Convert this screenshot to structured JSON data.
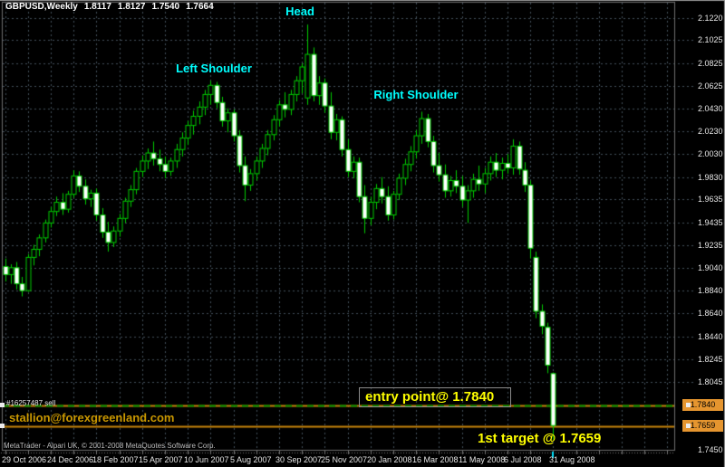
{
  "title": {
    "symbol": "GBPUSD,Weekly",
    "open": "1.8117",
    "high": "1.8127",
    "low": "1.7540",
    "close": "1.7664"
  },
  "annotations": {
    "head": "Head",
    "left_shoulder": "Left Shoulder",
    "right_shoulder": "Right Shoulder",
    "entry": "entry point@ 1.7840",
    "target": "1st target @ 1.7659"
  },
  "labels": {
    "order": "#16257487 sell",
    "email": "stallion@forexgreenland.com",
    "copyright": "MetaTrader - Alpari UK, © 2001-2008 MetaQuotes Software Corp."
  },
  "tags": {
    "entry": "1.7840",
    "target": "1.7659"
  },
  "colors": {
    "bg": "#000000",
    "frame": "#6e6e6e",
    "outer_border": "#9a9a9a",
    "grid": "#45515c",
    "candle": "#00cc00",
    "bull_fill": "#000000",
    "bear_fill": "#ffffff",
    "orange_line": "#c8860b",
    "entry_dash": "#009000",
    "tag_bg": "#e5952f",
    "tag_text": "#000000",
    "axis_text": "#e6e6e6",
    "cyan": "#00ffff",
    "yellow": "#ffff00",
    "gold": "#c99700",
    "white_text": "#ffffff",
    "watermark": "#bdbdbd",
    "tick": "#777777",
    "handle": "#ececec",
    "current_bar_tick": "#00e5ff"
  },
  "chart_data": {
    "type": "candlestick",
    "symbol": "GBPUSD",
    "timeframe": "Weekly",
    "pattern": "head and shoulders",
    "entry_price": 1.784,
    "target_price": 1.7659,
    "ylim": [
      1.745,
      2.136
    ],
    "grid": true,
    "x_ticks": [
      "29 Oct 2006",
      "24 Dec 2006",
      "18 Feb 2007",
      "15 Apr 2007",
      "10 Jun 2007",
      "5 Aug 2007",
      "30 Sep 2007",
      "25 Nov 2007",
      "20 Jan 2008",
      "16 Mar 2008",
      "11 May 2008",
      "6 Jul 2008",
      "31 Aug 2008"
    ],
    "x_tick_step_weeks": 8,
    "y_ticks": [
      "2.1220",
      "2.1025",
      "2.0825",
      "2.0625",
      "2.0430",
      "2.0230",
      "2.0030",
      "1.9830",
      "1.9635",
      "1.9435",
      "1.9235",
      "1.9040",
      "1.8840",
      "1.8640",
      "1.8440",
      "1.8245",
      "1.8045",
      "1.7450"
    ],
    "candles": [
      [
        1.905,
        1.912,
        1.892,
        1.898
      ],
      [
        1.898,
        1.907,
        1.89,
        1.904
      ],
      [
        1.904,
        1.909,
        1.885,
        1.89
      ],
      [
        1.89,
        1.896,
        1.879,
        1.884
      ],
      [
        1.884,
        1.916,
        1.883,
        1.913
      ],
      [
        1.913,
        1.924,
        1.906,
        1.92
      ],
      [
        1.92,
        1.933,
        1.914,
        1.93
      ],
      [
        1.93,
        1.946,
        1.926,
        1.943
      ],
      [
        1.943,
        1.957,
        1.939,
        1.953
      ],
      [
        1.953,
        1.966,
        1.949,
        1.961
      ],
      [
        1.961,
        1.969,
        1.95,
        1.955
      ],
      [
        1.955,
        1.971,
        1.952,
        1.968
      ],
      [
        1.968,
        1.989,
        1.965,
        1.984
      ],
      [
        1.984,
        1.988,
        1.97,
        1.975
      ],
      [
        1.975,
        1.981,
        1.959,
        1.964
      ],
      [
        1.964,
        1.972,
        1.957,
        1.969
      ],
      [
        1.969,
        1.973,
        1.945,
        1.95
      ],
      [
        1.95,
        1.956,
        1.93,
        1.935
      ],
      [
        1.935,
        1.944,
        1.918,
        1.926
      ],
      [
        1.926,
        1.94,
        1.922,
        1.936
      ],
      [
        1.936,
        1.951,
        1.931,
        1.947
      ],
      [
        1.947,
        1.965,
        1.943,
        1.962
      ],
      [
        1.962,
        1.976,
        1.957,
        1.972
      ],
      [
        1.972,
        1.991,
        1.968,
        1.988
      ],
      [
        1.988,
        2.002,
        1.983,
        1.997
      ],
      [
        1.997,
        2.008,
        1.99,
        2.004
      ],
      [
        2.004,
        2.014,
        1.993,
        1.999
      ],
      [
        1.999,
        2.007,
        1.988,
        1.994
      ],
      [
        1.994,
        2.001,
        1.982,
        1.988
      ],
      [
        1.988,
        2.0,
        1.984,
        1.997
      ],
      [
        1.997,
        2.012,
        1.991,
        2.007
      ],
      [
        2.007,
        2.022,
        2.001,
        2.017
      ],
      [
        2.017,
        2.032,
        2.011,
        2.028
      ],
      [
        2.028,
        2.041,
        2.02,
        2.036
      ],
      [
        2.036,
        2.049,
        2.029,
        2.044
      ],
      [
        2.044,
        2.059,
        2.037,
        2.055
      ],
      [
        2.055,
        2.067,
        2.046,
        2.063
      ],
      [
        2.063,
        2.066,
        2.043,
        2.048
      ],
      [
        2.048,
        2.053,
        2.027,
        2.032
      ],
      [
        2.032,
        2.043,
        2.022,
        2.039
      ],
      [
        2.039,
        2.042,
        2.014,
        2.019
      ],
      [
        2.019,
        2.024,
        1.987,
        1.993
      ],
      [
        1.993,
        2.001,
        1.962,
        1.976
      ],
      [
        1.976,
        1.99,
        1.971,
        1.986
      ],
      [
        1.986,
        2.001,
        1.98,
        1.997
      ],
      [
        1.997,
        2.012,
        1.991,
        2.008
      ],
      [
        2.008,
        2.024,
        2.002,
        2.02
      ],
      [
        2.02,
        2.037,
        2.015,
        2.033
      ],
      [
        2.033,
        2.05,
        2.027,
        2.046
      ],
      [
        2.046,
        2.057,
        2.035,
        2.042
      ],
      [
        2.042,
        2.059,
        2.037,
        2.055
      ],
      [
        2.055,
        2.071,
        2.049,
        2.067
      ],
      [
        2.067,
        2.082,
        2.056,
        2.079
      ],
      [
        2.052,
        2.116,
        2.046,
        2.09
      ],
      [
        2.09,
        2.096,
        2.049,
        2.054
      ],
      [
        2.054,
        2.071,
        2.046,
        2.065
      ],
      [
        2.065,
        2.069,
        2.039,
        2.045
      ],
      [
        2.045,
        2.057,
        2.016,
        2.022
      ],
      [
        2.022,
        2.038,
        2.015,
        2.033
      ],
      [
        2.033,
        2.036,
        2.001,
        2.007
      ],
      [
        2.007,
        2.016,
        1.983,
        1.988
      ],
      [
        1.988,
        2.001,
        1.982,
        1.996
      ],
      [
        1.996,
        2.0,
        1.961,
        1.966
      ],
      [
        1.966,
        1.976,
        1.934,
        1.947
      ],
      [
        1.947,
        1.966,
        1.941,
        1.961
      ],
      [
        1.961,
        1.977,
        1.955,
        1.973
      ],
      [
        1.973,
        1.983,
        1.96,
        1.966
      ],
      [
        1.966,
        1.975,
        1.945,
        1.95
      ],
      [
        1.95,
        1.971,
        1.946,
        1.968
      ],
      [
        1.968,
        1.986,
        1.963,
        1.982
      ],
      [
        1.982,
        1.999,
        1.976,
        1.994
      ],
      [
        1.994,
        2.01,
        1.988,
        2.005
      ],
      [
        2.005,
        2.024,
        1.999,
        2.019
      ],
      [
        2.019,
        2.04,
        2.012,
        2.034
      ],
      [
        2.034,
        2.038,
        2.009,
        2.014
      ],
      [
        2.014,
        2.019,
        1.987,
        1.993
      ],
      [
        1.993,
        2.004,
        1.979,
        1.985
      ],
      [
        1.985,
        1.994,
        1.965,
        1.971
      ],
      [
        1.971,
        1.984,
        1.966,
        1.98
      ],
      [
        1.98,
        1.989,
        1.969,
        1.975
      ],
      [
        1.975,
        1.984,
        1.957,
        1.963
      ],
      [
        1.963,
        1.976,
        1.943,
        1.971
      ],
      [
        1.971,
        1.986,
        1.965,
        1.981
      ],
      [
        1.981,
        1.993,
        1.971,
        1.977
      ],
      [
        1.977,
        1.991,
        1.969,
        1.986
      ],
      [
        1.986,
        2.001,
        1.98,
        1.996
      ],
      [
        1.996,
        2.004,
        1.983,
        1.989
      ],
      [
        1.989,
        2.0,
        1.981,
        1.995
      ],
      [
        1.995,
        2.003,
        1.986,
        1.991
      ],
      [
        1.991,
        2.016,
        1.985,
        2.01
      ],
      [
        2.01,
        2.014,
        1.985,
        1.99
      ],
      [
        1.989,
        1.996,
        1.97,
        1.976
      ],
      [
        1.976,
        1.98,
        1.912,
        1.921
      ],
      [
        1.913,
        1.918,
        1.86,
        1.866
      ],
      [
        1.866,
        1.872,
        1.846,
        1.853
      ],
      [
        1.852,
        1.856,
        1.812,
        1.819
      ],
      [
        1.8117,
        1.8127,
        1.754,
        1.7664
      ]
    ]
  }
}
